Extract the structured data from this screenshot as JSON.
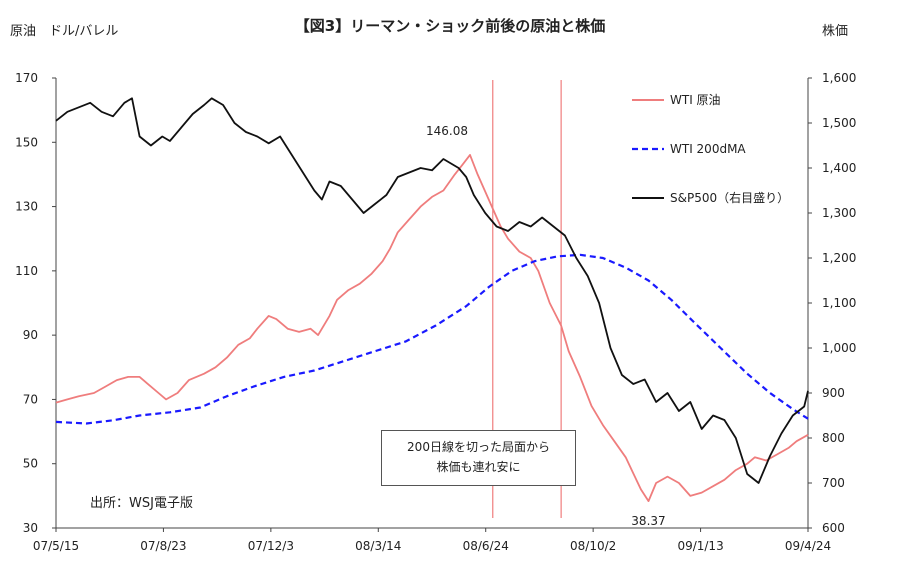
{
  "chart_data": {
    "type": "line",
    "title": "【図3】リーマン・ショック前後の原油と株価",
    "left_axis_label": "原油　ドル/バレル",
    "right_axis_label": "株価",
    "left_ylim": [
      30,
      170
    ],
    "right_ylim": [
      600,
      1600
    ],
    "left_ticks": [
      "170",
      "150",
      "130",
      "110",
      "90",
      "70",
      "50",
      "30"
    ],
    "right_ticks": [
      "1,600",
      "1,500",
      "1,400",
      "1,300",
      "1,200",
      "1,100",
      "1,000",
      "900",
      "800",
      "700",
      "600"
    ],
    "x_ticks": [
      "07/5/15",
      "07/8/23",
      "07/12/3",
      "08/3/14",
      "08/6/24",
      "08/10/2",
      "09/1/13",
      "09/4/24"
    ],
    "series": [
      {
        "name": "WTI 原油",
        "axis": "left",
        "color": "#ef7d7d",
        "style": "solid",
        "points": [
          [
            0,
            69
          ],
          [
            3,
            70
          ],
          [
            6,
            71
          ],
          [
            10,
            72
          ],
          [
            13,
            74
          ],
          [
            16,
            76
          ],
          [
            19,
            77
          ],
          [
            22,
            77
          ],
          [
            24,
            75
          ],
          [
            27,
            72
          ],
          [
            29,
            70
          ],
          [
            32,
            72
          ],
          [
            35,
            76
          ],
          [
            39,
            78
          ],
          [
            42,
            80
          ],
          [
            45,
            83
          ],
          [
            48,
            87
          ],
          [
            51,
            89
          ],
          [
            53,
            92
          ],
          [
            56,
            96
          ],
          [
            58,
            95
          ],
          [
            61,
            92
          ],
          [
            64,
            91
          ],
          [
            67,
            92
          ],
          [
            69,
            90
          ],
          [
            72,
            96
          ],
          [
            74,
            101
          ],
          [
            77,
            104
          ],
          [
            80,
            106
          ],
          [
            83,
            109
          ],
          [
            86,
            113
          ],
          [
            88,
            117
          ],
          [
            90,
            122
          ],
          [
            93,
            126
          ],
          [
            96,
            130
          ],
          [
            99,
            133
          ],
          [
            102,
            135
          ],
          [
            105,
            140
          ],
          [
            107,
            143
          ],
          [
            109,
            146.08
          ],
          [
            111,
            140
          ],
          [
            114,
            132
          ],
          [
            117,
            124
          ],
          [
            119,
            120
          ],
          [
            122,
            116
          ],
          [
            125,
            114
          ],
          [
            127,
            110
          ],
          [
            130,
            100
          ],
          [
            133,
            93
          ],
          [
            135,
            85
          ],
          [
            138,
            77
          ],
          [
            141,
            68
          ],
          [
            144,
            62
          ],
          [
            147,
            57
          ],
          [
            150,
            52
          ],
          [
            152,
            47
          ],
          [
            154,
            42
          ],
          [
            156,
            38.37
          ],
          [
            158,
            44
          ],
          [
            161,
            46
          ],
          [
            164,
            44
          ],
          [
            167,
            40
          ],
          [
            170,
            41
          ],
          [
            173,
            43
          ],
          [
            176,
            45
          ],
          [
            179,
            48
          ],
          [
            182,
            50
          ],
          [
            184,
            52
          ],
          [
            187,
            51
          ],
          [
            190,
            53
          ],
          [
            193,
            55
          ],
          [
            195,
            57
          ],
          [
            198,
            59
          ]
        ]
      },
      {
        "name": "WTI 200dMA",
        "axis": "left",
        "color": "#1a1aff",
        "style": "dashed",
        "points": [
          [
            0,
            63
          ],
          [
            8,
            62.5
          ],
          [
            15,
            63.5
          ],
          [
            22,
            65
          ],
          [
            30,
            66
          ],
          [
            38,
            67.5
          ],
          [
            45,
            71
          ],
          [
            52,
            74
          ],
          [
            60,
            77
          ],
          [
            68,
            79
          ],
          [
            76,
            82
          ],
          [
            84,
            85
          ],
          [
            92,
            88
          ],
          [
            100,
            93
          ],
          [
            108,
            99
          ],
          [
            114,
            105
          ],
          [
            120,
            110
          ],
          [
            126,
            113
          ],
          [
            132,
            114.5
          ],
          [
            138,
            115
          ],
          [
            144,
            114
          ],
          [
            150,
            111
          ],
          [
            156,
            107
          ],
          [
            162,
            101
          ],
          [
            168,
            94
          ],
          [
            175,
            86
          ],
          [
            182,
            78
          ],
          [
            188,
            72
          ],
          [
            194,
            67
          ],
          [
            198,
            64
          ]
        ]
      },
      {
        "name": "S&P500（右目盛り）",
        "axis": "right",
        "color": "#111111",
        "style": "solid",
        "points": [
          [
            0,
            1505
          ],
          [
            3,
            1525
          ],
          [
            6,
            1535
          ],
          [
            9,
            1545
          ],
          [
            12,
            1525
          ],
          [
            15,
            1515
          ],
          [
            18,
            1545
          ],
          [
            20,
            1555
          ],
          [
            22,
            1470
          ],
          [
            25,
            1450
          ],
          [
            28,
            1470
          ],
          [
            30,
            1460
          ],
          [
            33,
            1490
          ],
          [
            36,
            1520
          ],
          [
            39,
            1540
          ],
          [
            41,
            1555
          ],
          [
            44,
            1540
          ],
          [
            47,
            1500
          ],
          [
            50,
            1480
          ],
          [
            53,
            1470
          ],
          [
            56,
            1455
          ],
          [
            59,
            1470
          ],
          [
            62,
            1430
          ],
          [
            65,
            1390
          ],
          [
            68,
            1350
          ],
          [
            70,
            1330
          ],
          [
            72,
            1370
          ],
          [
            75,
            1360
          ],
          [
            78,
            1330
          ],
          [
            81,
            1300
          ],
          [
            84,
            1320
          ],
          [
            87,
            1340
          ],
          [
            90,
            1380
          ],
          [
            93,
            1390
          ],
          [
            96,
            1400
          ],
          [
            99,
            1395
          ],
          [
            102,
            1420
          ],
          [
            104,
            1410
          ],
          [
            106,
            1400
          ],
          [
            108,
            1380
          ],
          [
            110,
            1340
          ],
          [
            113,
            1300
          ],
          [
            116,
            1270
          ],
          [
            119,
            1260
          ],
          [
            122,
            1280
          ],
          [
            125,
            1270
          ],
          [
            128,
            1290
          ],
          [
            131,
            1270
          ],
          [
            134,
            1250
          ],
          [
            137,
            1200
          ],
          [
            140,
            1160
          ],
          [
            143,
            1100
          ],
          [
            146,
            1000
          ],
          [
            149,
            940
          ],
          [
            152,
            920
          ],
          [
            155,
            930
          ],
          [
            158,
            880
          ],
          [
            161,
            900
          ],
          [
            164,
            860
          ],
          [
            167,
            880
          ],
          [
            170,
            820
          ],
          [
            173,
            850
          ],
          [
            176,
            840
          ],
          [
            179,
            800
          ],
          [
            182,
            720
          ],
          [
            185,
            700
          ],
          [
            188,
            760
          ],
          [
            191,
            810
          ],
          [
            194,
            850
          ],
          [
            197,
            870
          ],
          [
            198,
            905
          ]
        ]
      }
    ],
    "x_range": [
      0,
      198
    ],
    "annotations": {
      "oil_peak": "146.08",
      "oil_low": "38.37",
      "note_line1": "200日線を切った局面から",
      "note_line2": "株価も連れ安に",
      "source": "出所：WSJ電子版"
    },
    "vertical_markers_x": [
      115,
      133
    ]
  }
}
